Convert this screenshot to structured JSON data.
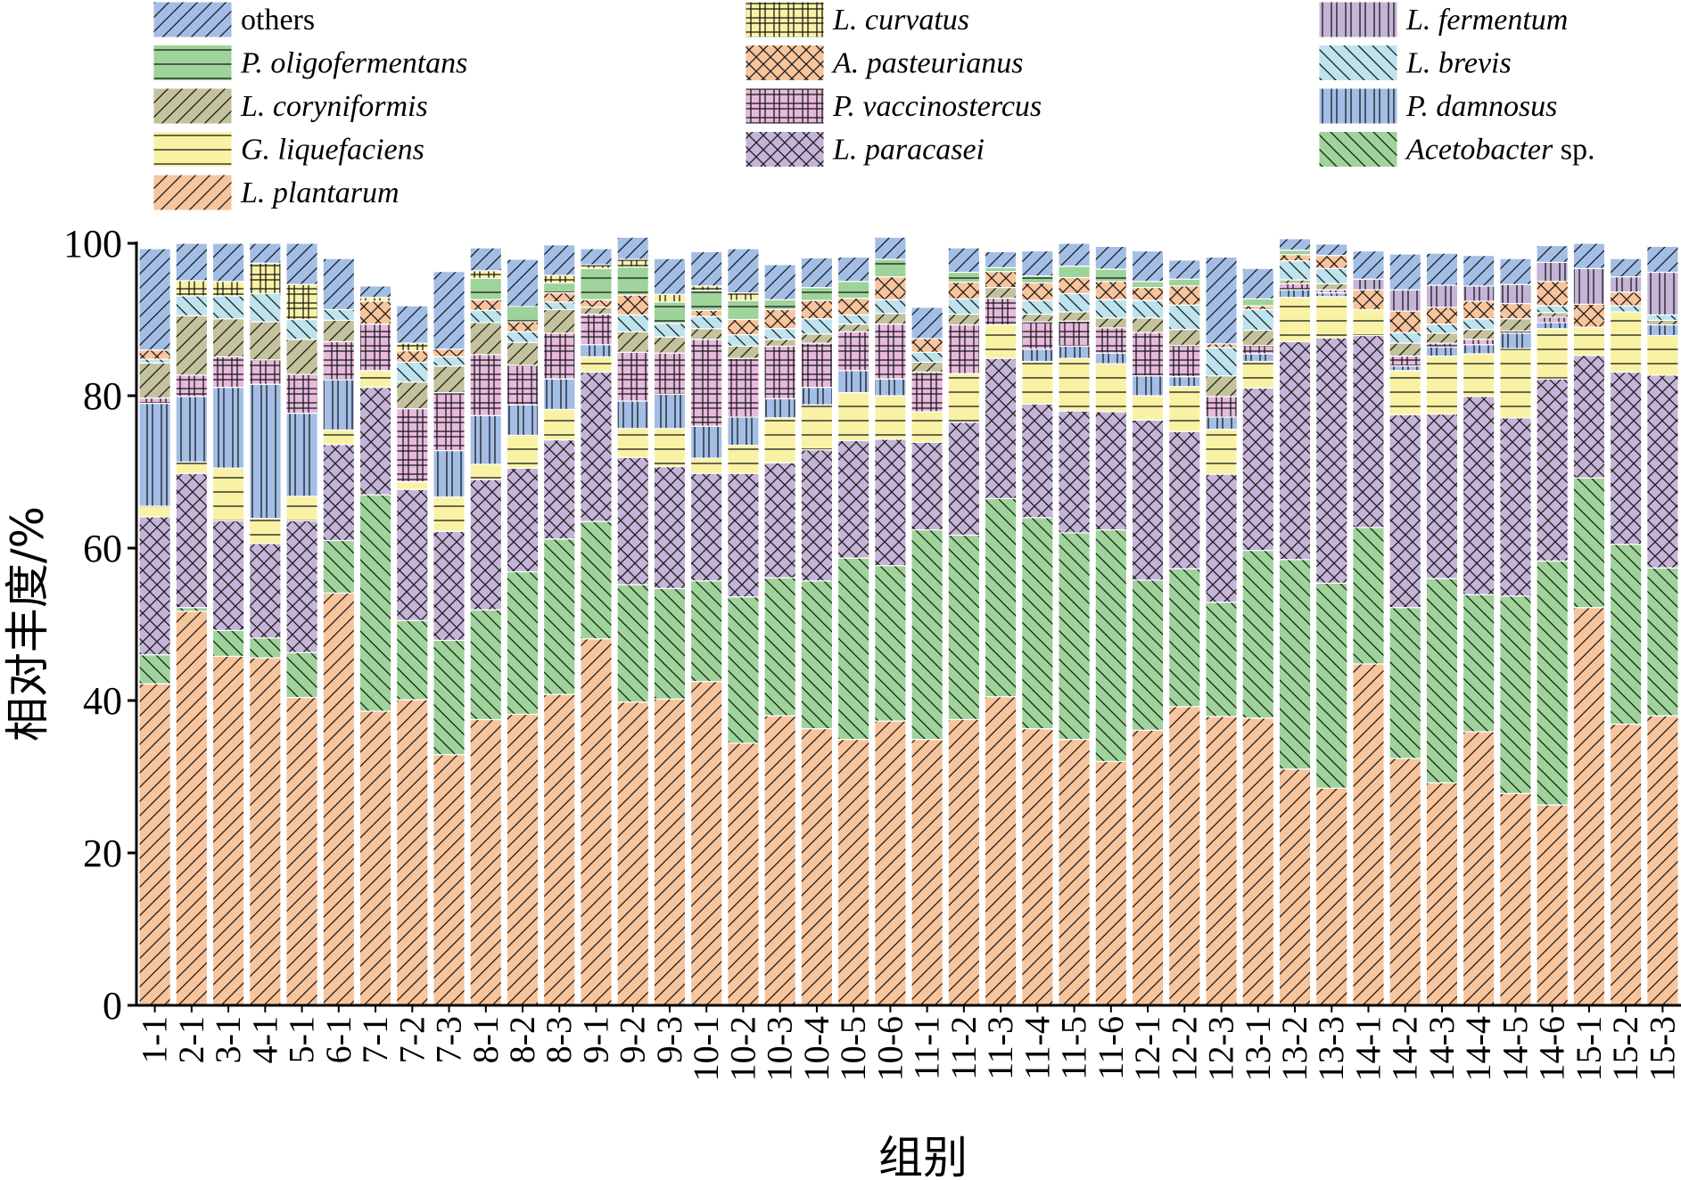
{
  "chart_data": {
    "type": "bar",
    "stacked": true,
    "xlabel": "组别",
    "ylabel": "相对丰度/%",
    "ylim": [
      0,
      100
    ],
    "yticks": [
      0,
      20,
      40,
      60,
      80,
      100
    ],
    "legend_position": "top",
    "categories": [
      "1-1",
      "2-1",
      "3-1",
      "4-1",
      "5-1",
      "6-1",
      "7-1",
      "7-2",
      "7-3",
      "8-1",
      "8-2",
      "8-3",
      "9-1",
      "9-2",
      "9-3",
      "10-1",
      "10-2",
      "10-3",
      "10-4",
      "10-5",
      "10-6",
      "11-1",
      "11-2",
      "11-3",
      "11-4",
      "11-5",
      "11-6",
      "12-1",
      "12-2",
      "12-3",
      "13-1",
      "13-2",
      "13-3",
      "14-1",
      "14-2",
      "14-3",
      "14-4",
      "14-5",
      "14-6",
      "15-1",
      "15-2",
      "15-3"
    ],
    "series": [
      {
        "name": "L. plantarum",
        "italic": "L. plantarum",
        "rest": "",
        "color": "#f8c49c",
        "pattern": "fwd",
        "values": [
          42.2,
          51.7,
          45.8,
          45.6,
          40.4,
          54.1,
          38.6,
          40.1,
          32.9,
          37.5,
          38.2,
          40.8,
          48.1,
          39.8,
          40.2,
          42.5,
          34.4,
          38.0,
          36.3,
          34.9,
          37.3,
          34.9,
          37.5,
          40.5,
          36.3,
          34.9,
          32.0,
          36.1,
          39.2,
          37.9,
          37.7,
          31.0,
          28.5,
          44.8,
          32.4,
          29.2,
          35.9,
          27.8,
          26.3,
          52.2,
          36.9,
          38.0
        ]
      },
      {
        "name": "Acetobacter sp.",
        "italic": "Acetobacter",
        "rest": " sp.",
        "color": "#9ed39a",
        "pattern": "back",
        "values": [
          3.8,
          0.5,
          3.4,
          2.6,
          5.9,
          6.9,
          28.4,
          10.4,
          15.0,
          14.4,
          18.7,
          20.4,
          15.4,
          15.4,
          14.5,
          13.2,
          19.2,
          18.1,
          19.4,
          23.8,
          20.4,
          27.5,
          24.2,
          26.0,
          27.7,
          27.1,
          30.4,
          19.7,
          18.1,
          15.0,
          22.0,
          27.5,
          26.9,
          17.9,
          19.8,
          26.8,
          18.0,
          25.9,
          32.0,
          17.0,
          23.6,
          19.4
        ]
      },
      {
        "name": "L. paracasei",
        "italic": "L. paracasei",
        "rest": "",
        "color": "#c5b4d8",
        "pattern": "cross",
        "values": [
          18.1,
          17.6,
          14.4,
          12.4,
          17.3,
          12.6,
          14.1,
          17.2,
          14.3,
          17.1,
          13.6,
          13.0,
          19.6,
          16.7,
          16.0,
          14.1,
          16.2,
          15.1,
          17.2,
          15.4,
          16.6,
          11.5,
          14.8,
          18.4,
          14.9,
          16.0,
          15.5,
          21.0,
          18.0,
          16.8,
          21.3,
          28.6,
          32.2,
          25.2,
          25.3,
          21.6,
          26.0,
          23.4,
          23.9,
          16.1,
          22.6,
          25.3
        ]
      },
      {
        "name": "G. liquefaciens",
        "italic": "G. liquefaciens",
        "rest": "",
        "color": "#f9f2a5",
        "pattern": "horiz",
        "values": [
          1.4,
          1.5,
          6.9,
          3.3,
          3.2,
          1.9,
          2.2,
          1.0,
          4.5,
          2.0,
          4.3,
          4.0,
          2.0,
          3.8,
          5.0,
          2.0,
          3.7,
          5.9,
          5.9,
          6.3,
          5.7,
          4.0,
          6.4,
          4.4,
          5.6,
          6.9,
          6.3,
          3.2,
          5.9,
          5.9,
          3.5,
          5.8,
          5.4,
          3.4,
          5.8,
          7.6,
          5.6,
          9.1,
          6.6,
          3.7,
          7.9,
          5.2
        ]
      },
      {
        "name": "P. damnosus",
        "italic": "P. damnosus",
        "rest": "",
        "color": "#a3bee6",
        "pattern": "vert",
        "values": [
          13.5,
          8.6,
          10.6,
          17.6,
          10.9,
          6.6,
          0.0,
          0.0,
          6.1,
          6.4,
          4.0,
          4.0,
          1.6,
          3.6,
          4.5,
          4.2,
          3.7,
          2.5,
          2.3,
          2.9,
          2.2,
          0.0,
          0.0,
          0.0,
          1.6,
          1.6,
          1.4,
          2.6,
          1.3,
          1.6,
          1.0,
          1.0,
          0.5,
          0.0,
          0.6,
          1.2,
          1.2,
          2.0,
          0.8,
          0.0,
          0.0,
          1.4
        ]
      },
      {
        "name": "P. vaccinostercus",
        "italic": "P. vaccinostercus",
        "rest": "",
        "color": "#e7b9dd",
        "pattern": "grid",
        "values": [
          0.7,
          2.8,
          4.0,
          3.2,
          5.1,
          5.0,
          6.1,
          9.6,
          7.6,
          8.0,
          5.2,
          6.0,
          4.0,
          6.4,
          5.4,
          11.4,
          7.7,
          6.9,
          5.8,
          5.1,
          7.2,
          5.2,
          6.4,
          3.5,
          3.6,
          3.3,
          3.3,
          5.7,
          4.1,
          2.7,
          1.1,
          0.8,
          0.4,
          0.0,
          1.3,
          0.5,
          0.7,
          0.3,
          0.7,
          0.0,
          0.0,
          0.0
        ]
      },
      {
        "name": "L. coryniformis",
        "italic": "L. coryniformis",
        "rest": "",
        "color": "#c3c29c",
        "pattern": "fwd",
        "values": [
          4.6,
          7.8,
          5.0,
          5.0,
          4.6,
          2.8,
          0.0,
          3.5,
          3.5,
          4.2,
          3.0,
          3.1,
          0.9,
          2.7,
          2.1,
          1.4,
          1.6,
          0.9,
          1.2,
          1.0,
          1.4,
          1.3,
          1.4,
          1.4,
          1.0,
          1.2,
          1.3,
          1.9,
          2.1,
          2.7,
          2.0,
          0.5,
          0.8,
          0.0,
          1.7,
          1.3,
          1.3,
          1.6,
          0.6,
          0.0,
          0.0,
          0.6
        ]
      },
      {
        "name": "L. brevis",
        "italic": "L. brevis",
        "rest": "",
        "color": "#bde3ee",
        "pattern": "back",
        "values": [
          0.5,
          2.6,
          3.0,
          3.7,
          2.6,
          1.4,
          0.0,
          2.6,
          1.2,
          1.6,
          1.4,
          1.0,
          0.0,
          2.2,
          1.8,
          1.6,
          1.5,
          1.4,
          2.0,
          1.2,
          1.8,
          1.3,
          2.0,
          0.0,
          1.8,
          2.4,
          2.4,
          2.3,
          3.2,
          3.7,
          2.7,
          2.5,
          2.0,
          0.0,
          1.4,
          1.2,
          1.4,
          0.0,
          0.9,
          0.0,
          0.8,
          0.7
        ]
      },
      {
        "name": "A. pasteurianus",
        "italic": "A. pasteurianus",
        "rest": "",
        "color": "#f8c49c",
        "pattern": "cross",
        "values": [
          1.2,
          0.0,
          0.0,
          0.0,
          0.0,
          0.0,
          3.0,
          1.5,
          1.0,
          1.4,
          1.3,
          1.2,
          1.0,
          2.6,
          0.0,
          0.8,
          2.0,
          2.5,
          2.4,
          2.2,
          3.0,
          1.8,
          2.2,
          2.1,
          2.3,
          2.1,
          2.4,
          1.7,
          2.5,
          0.5,
          0.5,
          0.8,
          1.7,
          2.6,
          2.8,
          2.2,
          2.3,
          2.0,
          3.2,
          3.0,
          1.8,
          0.0
        ]
      },
      {
        "name": "L. fermentum",
        "italic": "L. fermentum",
        "rest": "",
        "color": "#c5b4d8",
        "pattern": "vert",
        "values": [
          0.0,
          0.0,
          0.0,
          0.0,
          0.0,
          0.0,
          0.0,
          0.0,
          0.0,
          0.0,
          0.0,
          0.0,
          0.0,
          0.0,
          0.0,
          0.0,
          0.0,
          0.0,
          0.0,
          0.0,
          0.0,
          0.0,
          0.0,
          0.0,
          0.0,
          0.0,
          0.0,
          0.0,
          0.0,
          0.0,
          0.0,
          0.0,
          0.0,
          1.4,
          2.8,
          2.9,
          2.0,
          2.5,
          2.5,
          4.7,
          2.0,
          5.6
        ]
      },
      {
        "name": "P. oligofermentans",
        "italic": "P. oligofermentans",
        "rest": "",
        "color": "#9ed39a",
        "pattern": "horiz",
        "values": [
          0.0,
          0.0,
          0.0,
          0.0,
          0.0,
          0.0,
          0.0,
          0.0,
          0.0,
          2.8,
          2.0,
          1.3,
          4.1,
          3.7,
          2.8,
          2.6,
          2.5,
          1.3,
          1.7,
          2.2,
          2.3,
          0.0,
          1.3,
          0.5,
          0.9,
          1.5,
          1.6,
          0.8,
          0.9,
          0.0,
          0.9,
          0.6,
          0.0,
          0.0,
          0.0,
          0.0,
          0.0,
          0.0,
          0.0,
          0.0,
          0.0,
          0.0
        ]
      },
      {
        "name": "L. curvatus",
        "italic": "L. curvatus",
        "rest": "",
        "color": "#f9f2a5",
        "pattern": "grid",
        "values": [
          0.0,
          2.0,
          1.9,
          4.0,
          4.6,
          0.0,
          0.5,
          1.0,
          0.0,
          1.0,
          0.0,
          1.0,
          0.5,
          1.0,
          1.0,
          0.6,
          1.0,
          0.0,
          0.0,
          0.0,
          0.0,
          0.0,
          0.0,
          0.0,
          0.0,
          0.0,
          0.0,
          0.0,
          0.0,
          0.0,
          0.0,
          0.0,
          0.0,
          0.0,
          0.0,
          0.0,
          0.0,
          0.0,
          0.0,
          0.0,
          0.0,
          0.0
        ]
      },
      {
        "name": "others",
        "italic": "",
        "rest": "others",
        "color": "#a3bee6",
        "pattern": "fwd",
        "values": [
          13.3,
          4.9,
          5.0,
          2.6,
          5.4,
          6.7,
          1.5,
          4.9,
          10.2,
          3.0,
          6.2,
          4.0,
          2.1,
          2.9,
          4.7,
          4.5,
          5.8,
          4.6,
          3.9,
          3.2,
          2.9,
          4.1,
          3.2,
          2.1,
          3.3,
          3.0,
          3.0,
          4.0,
          2.5,
          11.4,
          4.0,
          1.5,
          1.5,
          3.7,
          4.7,
          4.2,
          4.0,
          3.4,
          2.2,
          3.3,
          2.4,
          3.4
        ]
      }
    ]
  }
}
